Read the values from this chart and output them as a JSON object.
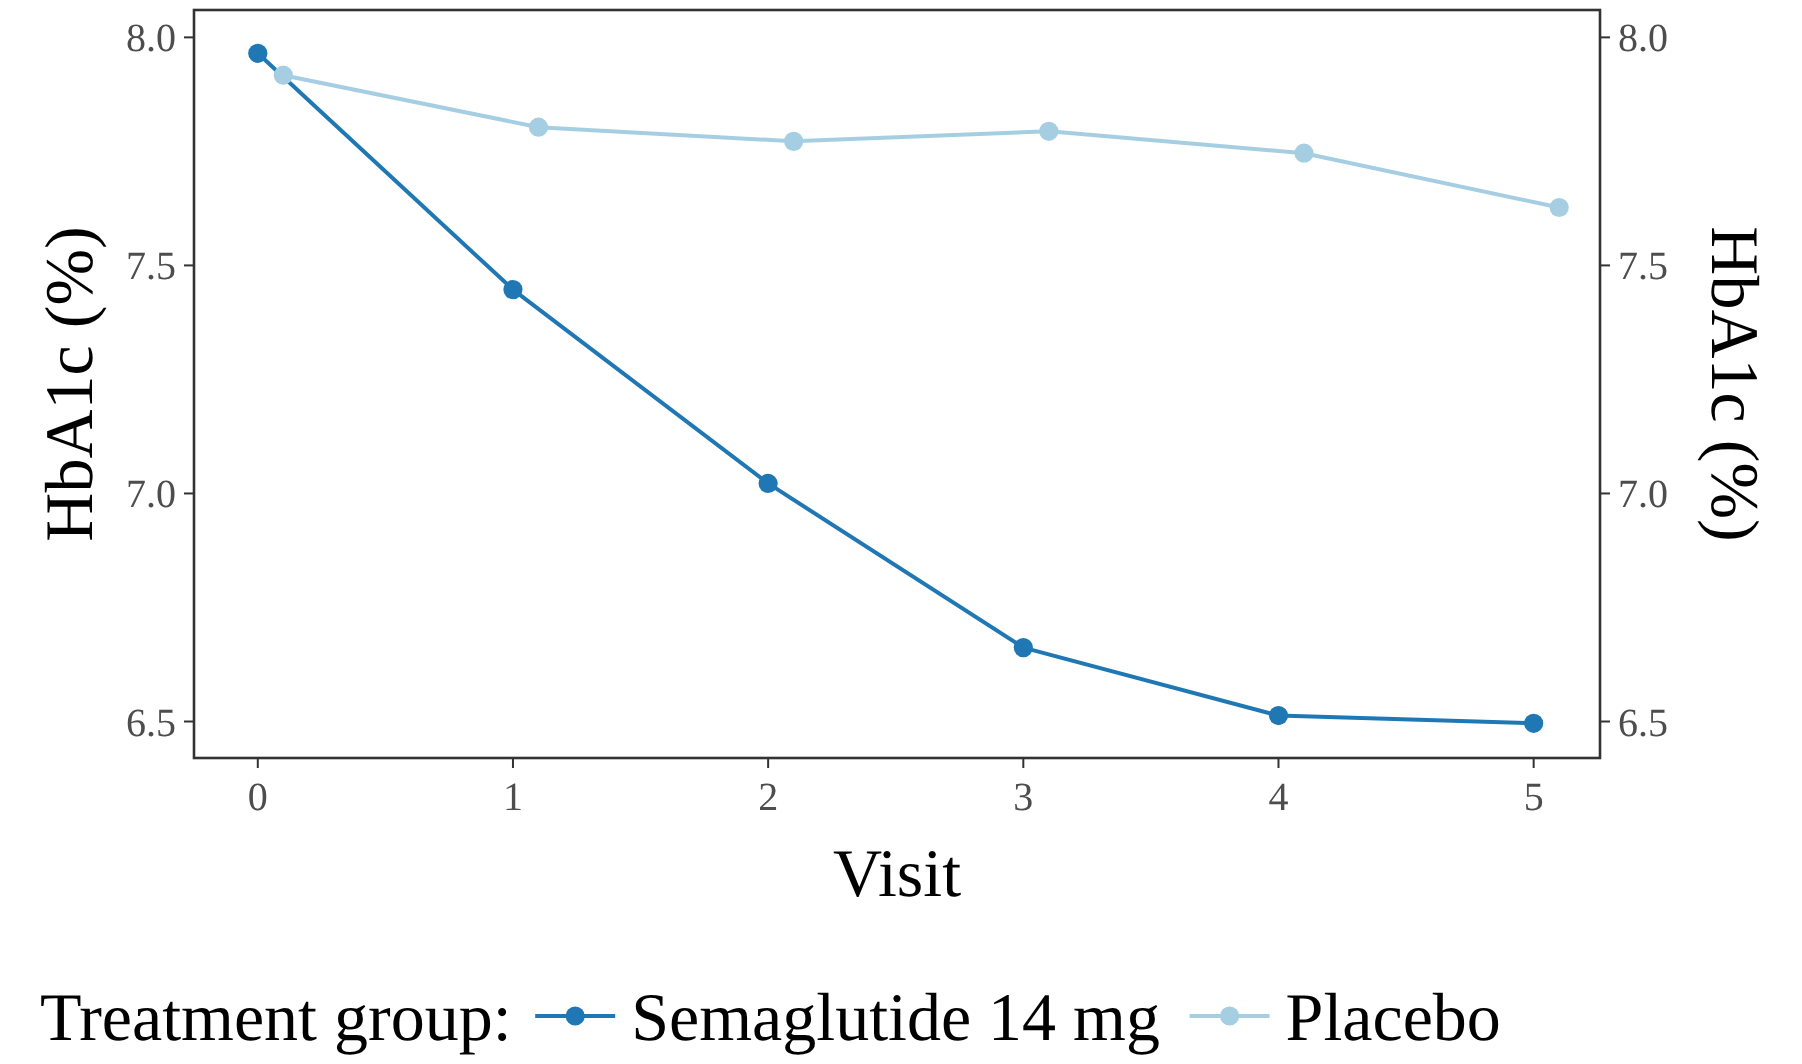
{
  "chart_data": {
    "type": "line",
    "xlabel": "Visit",
    "ylabel": "HbA1c (%)",
    "y2label": "HbA1c (%)",
    "legend_title": "Treatment group:",
    "legend": "bottom",
    "marker": "circle",
    "line_style": "solid",
    "xlim": [
      -0.25,
      5.26
    ],
    "xticks": [
      0,
      1,
      2,
      3,
      4,
      5
    ],
    "ylim": [
      6.42,
      8.06
    ],
    "yticks": [
      {
        "value": 6.5,
        "label": "6.5"
      },
      {
        "value": 7,
        "label": "7.0"
      },
      {
        "value": 7.5,
        "label": "7.5"
      },
      {
        "value": 8,
        "label": "8.0"
      }
    ],
    "y2lim": [
      6.42,
      8.06
    ],
    "y2ticks": [
      {
        "value": 6.5,
        "label": "6.5"
      },
      {
        "value": 7,
        "label": "7.0"
      },
      {
        "value": 7.5,
        "label": "7.5"
      },
      {
        "value": 8,
        "label": "8.0"
      }
    ],
    "series": [
      {
        "name": "Semaglutide 14 mg",
        "color": "#1f78b4",
        "x": [
          0,
          1,
          2,
          3,
          4,
          5
        ],
        "values": [
          7.965,
          7.447,
          7.022,
          6.662,
          6.513,
          6.496
        ]
      },
      {
        "name": "Placebo",
        "color": "#a6cee3",
        "x": [
          0.1,
          1.1,
          2.1,
          3.1,
          4.1,
          5.1
        ],
        "values": [
          7.917,
          7.803,
          7.772,
          7.794,
          7.746,
          7.627
        ]
      }
    ]
  }
}
